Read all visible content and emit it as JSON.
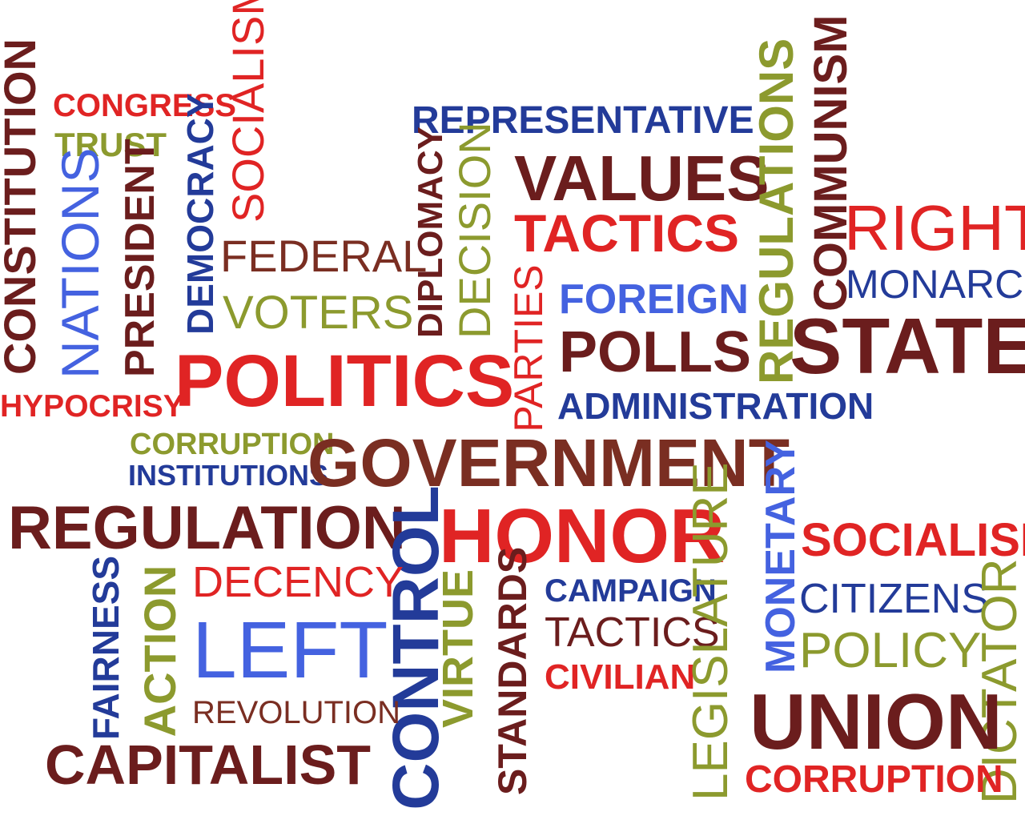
{
  "colors": {
    "maroon": "#6b1d1d",
    "brown": "#7a2e22",
    "red": "#e02424",
    "navy": "#233b99",
    "blue": "#4462e0",
    "olive": "#8c9a2e"
  },
  "words": {
    "constitution": "CONSTITUTION",
    "congress": "CONGRESS",
    "trust": "TRUST",
    "nations": "NATIONS",
    "president": "PRESIDENT",
    "democracy": "DEMOCRACY",
    "socialism_top": "SOCIALISM",
    "hypocrisy": "HYPOCRISY",
    "politics": "POLITICS",
    "federal": "FEDERAL",
    "voters": "VOTERS",
    "representative": "REPRESENTATIVE",
    "values": "VALUES",
    "tactics_top": "TACTICS",
    "diplomacy": "DIPLOMACY",
    "decision": "DECISION",
    "parties": "PARTIES",
    "foreign": "FOREIGN",
    "polls": "POLLS",
    "administration": "ADMINISTRATION",
    "regulations": "REGULATIONS",
    "communism": "COMMUNISM",
    "right": "RIGHT",
    "monarch": "MONARCH",
    "state": "STATE",
    "corruption_mid": "CORRUPTION",
    "institutions": "INSTITUTIONS",
    "government": "GOVERNMENT",
    "regulation": "REGULATION",
    "control": "CONTROL",
    "honor": "HONOR",
    "monetary": "MONETARY",
    "socialism_right": "SOCIALISM",
    "fairness": "FAIRNESS",
    "action": "ACTION",
    "decency": "DECENCY",
    "left": "LEFT",
    "revolution": "REVOLUTION",
    "capitalist": "CAPITALIST",
    "virtue": "VIRTUE",
    "standards": "STANDARDS",
    "campaign": "CAMPAIGN",
    "tactics_low": "TACTICS",
    "civilian": "CIVILIAN",
    "legislature": "LEGISLATURE",
    "citizens": "CITIZENS",
    "policy": "POLICY",
    "dictator": "DICTATOR",
    "union": "UNION",
    "corruption_bottom": "CORRUPTION"
  }
}
